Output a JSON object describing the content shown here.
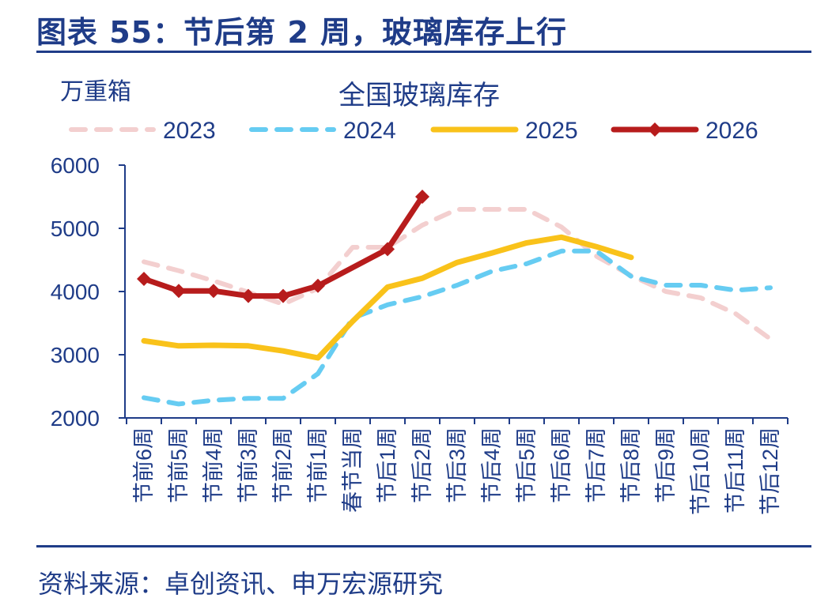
{
  "figure": {
    "title": "图表 55：节后第 2 周，玻璃库存上行",
    "source": "资料来源：卓创资讯、申万宏源研究"
  },
  "colors": {
    "brand": "#1f3c88",
    "axis": "#1f3c88",
    "s2023": "#f3cfcf",
    "s2024": "#66ccf2",
    "s2025": "#f9c21a",
    "s2026": "#b71c1c"
  },
  "chart_data": {
    "type": "line",
    "title": "全国玻璃库存",
    "ylabel": "万重箱",
    "xlabel": "",
    "ylim": [
      2000,
      6000
    ],
    "yticks": [
      2000,
      3000,
      4000,
      5000,
      6000
    ],
    "legend_position": "top",
    "grid": false,
    "categories": [
      "节前6周",
      "节前5周",
      "节前4周",
      "节前3周",
      "节前2周",
      "节前1周",
      "春节当周",
      "节后1周",
      "节后2周",
      "节后3周",
      "节后4周",
      "节后5周",
      "节后6周",
      "节后7周",
      "节后8周",
      "节后9周",
      "节后10周",
      "节后11周",
      "节后12周"
    ],
    "series": [
      {
        "name": "2023",
        "style": "dashed",
        "color_key": "s2023",
        "values": [
          4470,
          4330,
          4170,
          3990,
          3800,
          4050,
          4700,
          4700,
          5050,
          5300,
          5300,
          5300,
          5020,
          4560,
          4250,
          4000,
          3900,
          3650,
          3250
        ]
      },
      {
        "name": "2024",
        "style": "dashed",
        "color_key": "s2024",
        "values": [
          2320,
          2220,
          2280,
          2310,
          2310,
          2700,
          3580,
          3790,
          3920,
          4100,
          4320,
          4440,
          4640,
          4640,
          4240,
          4100,
          4100,
          4020,
          4060
        ]
      },
      {
        "name": "2025",
        "style": "solid",
        "color_key": "s2025",
        "values": [
          3220,
          3140,
          3150,
          3140,
          3060,
          2950,
          3530,
          4070,
          4210,
          4460,
          4610,
          4770,
          4860,
          4710,
          4540,
          null,
          null,
          null,
          null
        ]
      },
      {
        "name": "2026",
        "style": "solid-marker",
        "color_key": "s2026",
        "values": [
          4200,
          4010,
          4010,
          3930,
          3930,
          4090,
          null,
          4670,
          5500,
          null,
          null,
          null,
          null,
          null,
          null,
          null,
          null,
          null,
          null
        ]
      }
    ]
  }
}
